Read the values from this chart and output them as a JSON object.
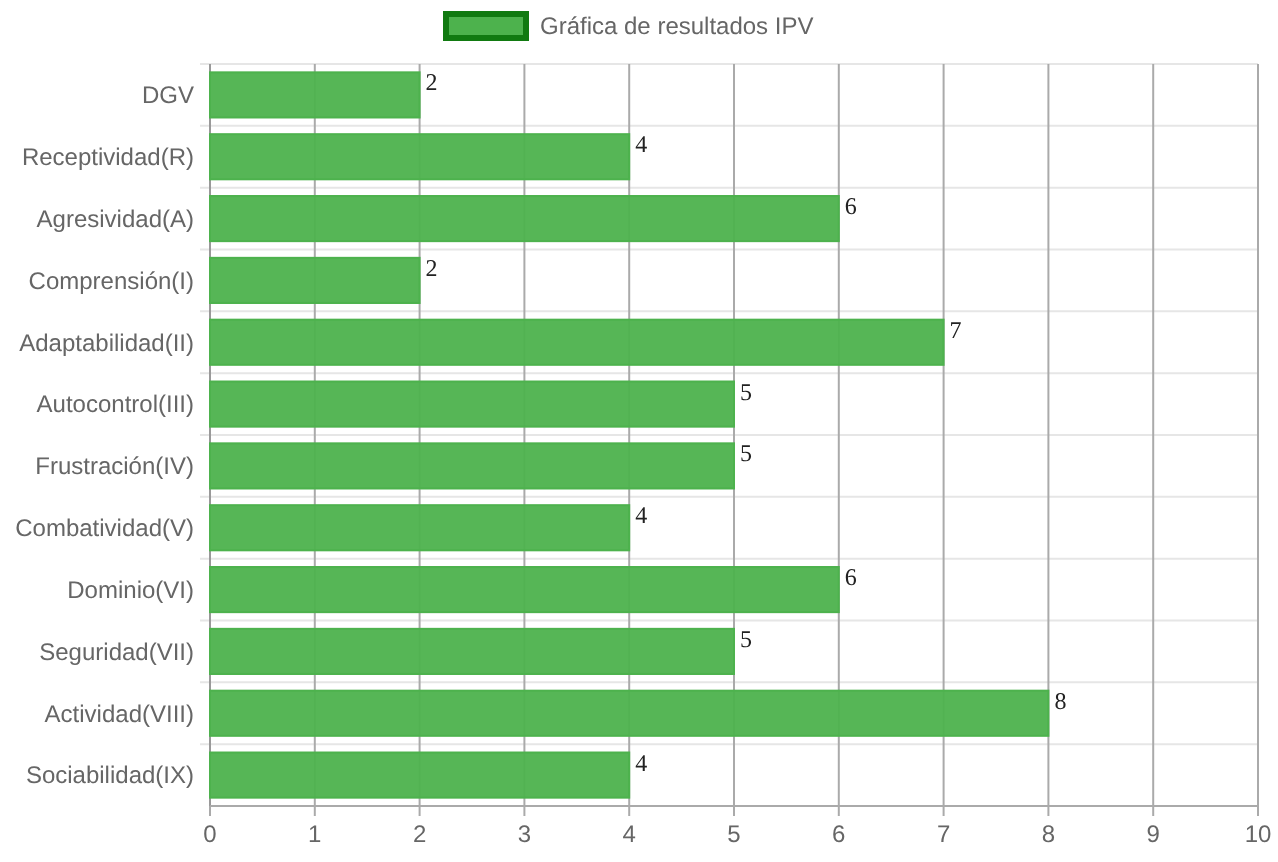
{
  "chart_data": {
    "type": "bar",
    "orientation": "horizontal",
    "categories": [
      "DGV",
      "Receptividad(R)",
      "Agresividad(A)",
      "Comprensión(I)",
      "Adaptabilidad(II)",
      "Autocontrol(III)",
      "Frustración(IV)",
      "Combatividad(V)",
      "Dominio(VI)",
      "Seguridad(VII)",
      "Actividad(VIII)",
      "Sociabilidad(IX)"
    ],
    "series": [
      {
        "name": "Gráfica de resultados IPV",
        "color": "#4db24d",
        "values": [
          2,
          4,
          6,
          2,
          7,
          5,
          5,
          4,
          6,
          5,
          8,
          4
        ]
      }
    ],
    "xlim": [
      0,
      10
    ],
    "xticks": [
      0,
      1,
      2,
      3,
      4,
      5,
      6,
      7,
      8,
      9,
      10
    ],
    "grid": true,
    "legend": "top",
    "data_labels": true
  }
}
